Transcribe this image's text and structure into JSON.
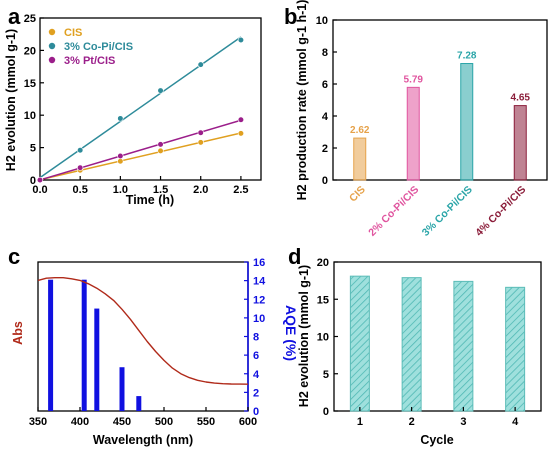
{
  "chart_data": [
    {
      "panel": "a",
      "type": "line",
      "xlabel": "Time (h)",
      "ylabel": "H2 evolution (mmol g-1)",
      "xlim": [
        0,
        2.75
      ],
      "ylim": [
        0,
        25
      ],
      "xticks": [
        0.0,
        0.5,
        1.0,
        1.5,
        2.0,
        2.5
      ],
      "xtick_labels": [
        "0.0",
        "0.5",
        "1.0",
        "1.5",
        "2.0",
        "2.5"
      ],
      "yticks": [
        0,
        5,
        10,
        15,
        20,
        25
      ],
      "legend_position": "top-left",
      "series": [
        {
          "name": "CIS",
          "color": "#e0a020",
          "x": [
            0,
            0.5,
            1.0,
            1.5,
            2.0,
            2.5
          ],
          "values": [
            0,
            1.5,
            2.9,
            4.5,
            5.8,
            7.2
          ]
        },
        {
          "name": "3% Co-Pi/CIS",
          "color": "#2e8b9a",
          "x": [
            0,
            0.5,
            1.0,
            1.5,
            2.0,
            2.5
          ],
          "values": [
            0,
            4.6,
            9.5,
            13.8,
            17.8,
            21.6
          ]
        },
        {
          "name": "3% Pt/CIS",
          "color": "#9b1e8a",
          "x": [
            0,
            0.5,
            1.0,
            1.5,
            2.0,
            2.5
          ],
          "values": [
            0,
            1.9,
            3.7,
            5.5,
            7.3,
            9.3
          ]
        }
      ]
    },
    {
      "panel": "b",
      "type": "bar",
      "xlabel": "",
      "ylabel": "H2 production rate (mmol g-1 h-1)",
      "ylim": [
        0,
        10
      ],
      "yticks": [
        0,
        2,
        4,
        6,
        8,
        10
      ],
      "categories": [
        "CIS",
        "2% Co-Pi/CIS",
        "3% Co-Pi/CIS",
        "4% Co-Pi/CIS"
      ],
      "values": [
        2.62,
        5.79,
        7.28,
        4.65
      ],
      "value_labels": [
        "2.62",
        "5.79",
        "7.28",
        "4.65"
      ],
      "colors": [
        "#e6a24a",
        "#e0559f",
        "#2aa5a8",
        "#8b1d3a"
      ]
    },
    {
      "panel": "c",
      "type": "bar",
      "xlabel": "Wavelength (nm)",
      "ylabel_left": "Abs",
      "ylabel_right": "AQE (%)",
      "xlim": [
        350,
        600
      ],
      "xticks": [
        350,
        400,
        450,
        500,
        550,
        600
      ],
      "y2lim": [
        0,
        16
      ],
      "y2ticks": [
        0,
        2,
        4,
        6,
        8,
        10,
        12,
        14,
        16
      ],
      "bars": {
        "x": [
          365,
          405,
          420,
          450,
          470
        ],
        "values": [
          14.1,
          14.1,
          11.0,
          4.7,
          1.6
        ],
        "color": "#1010e0"
      },
      "absorbance_curve": {
        "color": "#b02a1a",
        "x": [
          350,
          360,
          370,
          380,
          390,
          400,
          410,
          420,
          430,
          440,
          450,
          460,
          470,
          480,
          490,
          500,
          510,
          520,
          530,
          540,
          550,
          560,
          570,
          580,
          590,
          600
        ],
        "values": [
          0.96,
          0.98,
          0.985,
          0.985,
          0.975,
          0.96,
          0.93,
          0.89,
          0.84,
          0.78,
          0.7,
          0.61,
          0.51,
          0.41,
          0.32,
          0.24,
          0.17,
          0.12,
          0.085,
          0.06,
          0.045,
          0.035,
          0.03,
          0.027,
          0.026,
          0.025
        ]
      }
    },
    {
      "panel": "d",
      "type": "bar",
      "xlabel": "Cycle",
      "ylabel": "H2 evolution (mmol g-1)",
      "ylim": [
        0,
        20
      ],
      "yticks": [
        0,
        5,
        10,
        15,
        20
      ],
      "categories": [
        "1",
        "2",
        "3",
        "4"
      ],
      "values": [
        18.1,
        17.9,
        17.4,
        16.6
      ],
      "color": "#7dd3d0"
    }
  ],
  "panel_letters": [
    "a",
    "b",
    "c",
    "d"
  ]
}
